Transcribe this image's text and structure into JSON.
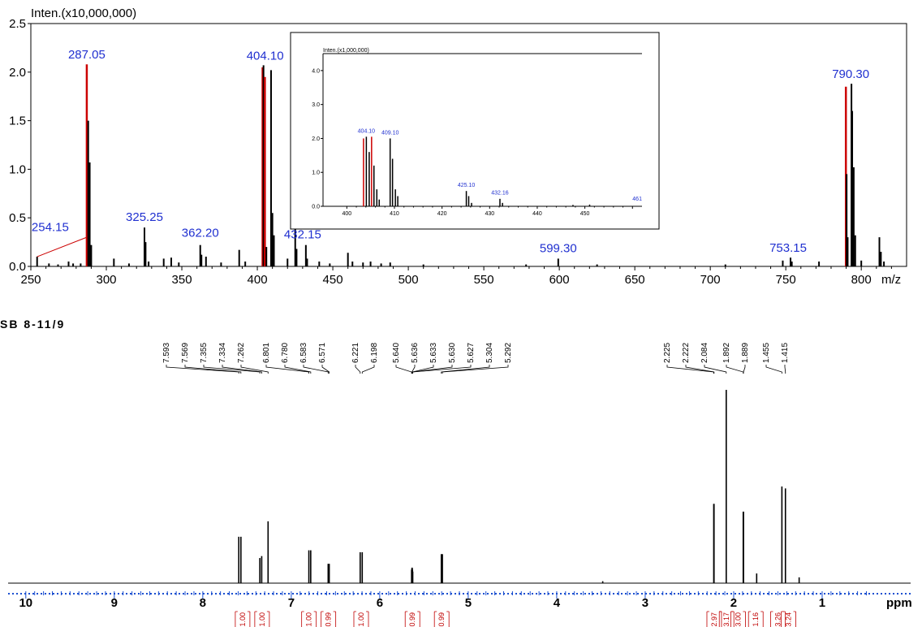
{
  "ms": {
    "y_title": "Inten.(x10,000,000)",
    "x_unit": "m/z",
    "peak_color": "#000000",
    "highlight_color": "#cc0000",
    "label_color": "#2030d0"
  },
  "inset": {
    "y_title": "Inten.(x1,000,000)",
    "x_ticks": [
      "400",
      "410",
      "420",
      "430",
      "440",
      "450"
    ],
    "y_ticks": [
      "0.0",
      "1.0",
      "2.0",
      "3.0",
      "4.0"
    ],
    "xlim": [
      395,
      462
    ],
    "ylim": [
      0,
      4.5
    ],
    "peak_labels": [
      {
        "mz": 404.1,
        "text": "404.10"
      },
      {
        "mz": 409.1,
        "text": "409.10"
      },
      {
        "mz": 425.1,
        "text": "425.10"
      },
      {
        "mz": 432.16,
        "text": "432.16"
      },
      {
        "mz": 461,
        "text": "461"
      }
    ]
  },
  "nmr": {
    "sample_label": "SB 8-11/9",
    "x_unit": "ppm",
    "x_ticks": [
      "10",
      "9",
      "8",
      "7",
      "6",
      "5",
      "4",
      "3",
      "2",
      "1"
    ],
    "shift_labels": [
      "7.593",
      "7.569",
      "7.355",
      "7.334",
      "7.262",
      "6.801",
      "6.780",
      "6.583",
      "6.571",
      "6.221",
      "6.198",
      "5.640",
      "5.636",
      "5.633",
      "5.630",
      "5.627",
      "5.304",
      "5.292",
      "2.225",
      "2.222",
      "2.084",
      "1.892",
      "1.889",
      "1.455",
      "1.415"
    ],
    "integrals": [
      {
        "center": 7.55,
        "text": "1.00"
      },
      {
        "center": 7.33,
        "text": "1.00"
      },
      {
        "center": 6.8,
        "text": "1.00"
      },
      {
        "center": 6.58,
        "text": "0.99"
      },
      {
        "center": 6.21,
        "text": "1.00"
      },
      {
        "center": 5.63,
        "text": "0.99"
      },
      {
        "center": 5.3,
        "text": "0.99"
      },
      {
        "center": 2.22,
        "text": "2.97"
      },
      {
        "center": 2.08,
        "text": "3.17"
      },
      {
        "center": 1.95,
        "text": "3.00"
      },
      {
        "center": 1.75,
        "text": "1.16"
      },
      {
        "center": 1.5,
        "text": "3.26"
      },
      {
        "center": 1.38,
        "text": "3.24"
      }
    ]
  },
  "chart_data": [
    {
      "type": "bar",
      "title": "",
      "ylabel": "Inten.(x10,000,000)",
      "xlabel": "m/z",
      "xlim": [
        250,
        830
      ],
      "ylim": [
        0,
        2.5
      ],
      "x_ticks": [
        "250",
        "300",
        "350",
        "400",
        "450",
        "500",
        "550",
        "600",
        "650",
        "700",
        "750",
        "800"
      ],
      "y_ticks": [
        "0.0",
        "0.5",
        "1.0",
        "1.5",
        "2.0",
        "2.5"
      ],
      "peaks": [
        {
          "mz": 254.15,
          "i": 0.1
        },
        {
          "mz": 262,
          "i": 0.03
        },
        {
          "mz": 268,
          "i": 0.02
        },
        {
          "mz": 275,
          "i": 0.05
        },
        {
          "mz": 278,
          "i": 0.03
        },
        {
          "mz": 283,
          "i": 0.03
        },
        {
          "mz": 287.05,
          "i": 2.08,
          "hl": true
        },
        {
          "mz": 288,
          "i": 1.5
        },
        {
          "mz": 289,
          "i": 1.07
        },
        {
          "mz": 290,
          "i": 0.22
        },
        {
          "mz": 305,
          "i": 0.08
        },
        {
          "mz": 315,
          "i": 0.03
        },
        {
          "mz": 325.25,
          "i": 0.4
        },
        {
          "mz": 326,
          "i": 0.25
        },
        {
          "mz": 328,
          "i": 0.05
        },
        {
          "mz": 338,
          "i": 0.08
        },
        {
          "mz": 343,
          "i": 0.09
        },
        {
          "mz": 348,
          "i": 0.04
        },
        {
          "mz": 362.2,
          "i": 0.22
        },
        {
          "mz": 363,
          "i": 0.12
        },
        {
          "mz": 366,
          "i": 0.1
        },
        {
          "mz": 376,
          "i": 0.04
        },
        {
          "mz": 388,
          "i": 0.17
        },
        {
          "mz": 392,
          "i": 0.05
        },
        {
          "mz": 403.5,
          "i": 2.05,
          "hl": true
        },
        {
          "mz": 404.1,
          "i": 2.07
        },
        {
          "mz": 405,
          "i": 1.95,
          "hl": true
        },
        {
          "mz": 406,
          "i": 0.2
        },
        {
          "mz": 409.1,
          "i": 2.02
        },
        {
          "mz": 410,
          "i": 0.55
        },
        {
          "mz": 411,
          "i": 0.32
        },
        {
          "mz": 420,
          "i": 0.08
        },
        {
          "mz": 425.1,
          "i": 0.45
        },
        {
          "mz": 426,
          "i": 0.18
        },
        {
          "mz": 432.15,
          "i": 0.22
        },
        {
          "mz": 433,
          "i": 0.08
        },
        {
          "mz": 441,
          "i": 0.05
        },
        {
          "mz": 448,
          "i": 0.03
        },
        {
          "mz": 460,
          "i": 0.14
        },
        {
          "mz": 463,
          "i": 0.05
        },
        {
          "mz": 470,
          "i": 0.04
        },
        {
          "mz": 475,
          "i": 0.05
        },
        {
          "mz": 482,
          "i": 0.03
        },
        {
          "mz": 488,
          "i": 0.04
        },
        {
          "mz": 510,
          "i": 0.02
        },
        {
          "mz": 578,
          "i": 0.02
        },
        {
          "mz": 599.3,
          "i": 0.08
        },
        {
          "mz": 625,
          "i": 0.02
        },
        {
          "mz": 710,
          "i": 0.02
        },
        {
          "mz": 748,
          "i": 0.06
        },
        {
          "mz": 753.15,
          "i": 0.09
        },
        {
          "mz": 754,
          "i": 0.05
        },
        {
          "mz": 772,
          "i": 0.05
        },
        {
          "mz": 789.8,
          "i": 1.85,
          "hl": true
        },
        {
          "mz": 790.3,
          "i": 0.95
        },
        {
          "mz": 791,
          "i": 0.3
        },
        {
          "mz": 793.5,
          "i": 1.88
        },
        {
          "mz": 794,
          "i": 1.6
        },
        {
          "mz": 795,
          "i": 1.02
        },
        {
          "mz": 796,
          "i": 0.32
        },
        {
          "mz": 800,
          "i": 0.06
        },
        {
          "mz": 812,
          "i": 0.3
        },
        {
          "mz": 813,
          "i": 0.15
        },
        {
          "mz": 815,
          "i": 0.05
        }
      ],
      "peak_labels": [
        {
          "mz": 254.15,
          "text": "254.15"
        },
        {
          "mz": 287.05,
          "text": "287.05"
        },
        {
          "mz": 325.25,
          "text": "325.25"
        },
        {
          "mz": 362.2,
          "text": "362.20"
        },
        {
          "mz": 404.1,
          "text": "404.10"
        },
        {
          "mz": 432.15,
          "text": "432.15"
        },
        {
          "mz": 599.3,
          "text": "599.30"
        },
        {
          "mz": 753.15,
          "text": "753.15"
        },
        {
          "mz": 790.3,
          "text": "790.30"
        }
      ]
    },
    {
      "type": "line",
      "title": "",
      "xlabel": "ppm",
      "xlim": [
        10.2,
        0.0
      ],
      "reversed_x": true,
      "peaks": [
        {
          "ppm": 7.593,
          "h": 0.24
        },
        {
          "ppm": 7.569,
          "h": 0.24
        },
        {
          "ppm": 7.355,
          "h": 0.13
        },
        {
          "ppm": 7.334,
          "h": 0.14
        },
        {
          "ppm": 7.262,
          "h": 0.32
        },
        {
          "ppm": 6.801,
          "h": 0.17
        },
        {
          "ppm": 6.78,
          "h": 0.17
        },
        {
          "ppm": 6.583,
          "h": 0.1
        },
        {
          "ppm": 6.571,
          "h": 0.1
        },
        {
          "ppm": 6.221,
          "h": 0.16
        },
        {
          "ppm": 6.198,
          "h": 0.16
        },
        {
          "ppm": 5.64,
          "h": 0.07
        },
        {
          "ppm": 5.636,
          "h": 0.08
        },
        {
          "ppm": 5.633,
          "h": 0.08
        },
        {
          "ppm": 5.63,
          "h": 0.07
        },
        {
          "ppm": 5.627,
          "h": 0.06
        },
        {
          "ppm": 5.304,
          "h": 0.15
        },
        {
          "ppm": 5.292,
          "h": 0.15
        },
        {
          "ppm": 2.225,
          "h": 0.41
        },
        {
          "ppm": 2.222,
          "h": 0.41
        },
        {
          "ppm": 2.084,
          "h": 1.0
        },
        {
          "ppm": 1.892,
          "h": 0.37
        },
        {
          "ppm": 1.889,
          "h": 0.37
        },
        {
          "ppm": 1.74,
          "h": 0.05
        },
        {
          "ppm": 1.455,
          "h": 0.5
        },
        {
          "ppm": 1.415,
          "h": 0.49
        },
        {
          "ppm": 1.26,
          "h": 0.03
        },
        {
          "ppm": 3.48,
          "h": 0.01
        }
      ]
    }
  ]
}
